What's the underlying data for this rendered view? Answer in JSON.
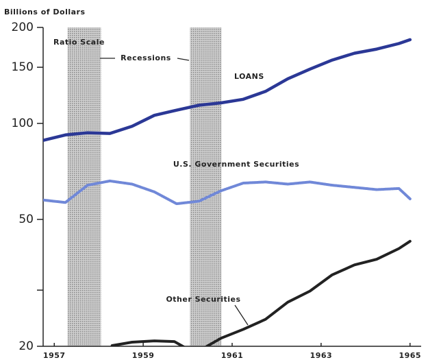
{
  "chart_data": {
    "type": "line",
    "ylabel": "Billions of Dollars",
    "scale_note": "Ratio Scale",
    "log_scale": true,
    "xlim": [
      1956.75,
      1965.25
    ],
    "xticks": [
      1957,
      1959,
      1961,
      1963,
      1965
    ],
    "ylim": [
      20,
      200
    ],
    "yticks": [
      20,
      50,
      100,
      150,
      200
    ],
    "minor_yticks": [
      30
    ],
    "recessions_label": "Recessions",
    "recessions": [
      [
        1957.3,
        1958.05
      ],
      [
        1960.05,
        1960.76
      ]
    ],
    "recession_color": "#b4b4b4",
    "series": [
      {
        "name": "LOANS",
        "color": "#2b3896",
        "x": [
          1956.75,
          1957.25,
          1957.75,
          1958.25,
          1958.75,
          1959.25,
          1959.75,
          1960.25,
          1960.75,
          1961.25,
          1961.75,
          1962.25,
          1962.75,
          1963.25,
          1963.75,
          1964.25,
          1964.75,
          1965.0
        ],
        "values": [
          88.5,
          92,
          93.5,
          93,
          98,
          106,
          110,
          114,
          116,
          119,
          126,
          138,
          148,
          158,
          166,
          171,
          178,
          183
        ]
      },
      {
        "name": "U.S. Government Securities",
        "color": "#7088d8",
        "x": [
          1956.75,
          1957.25,
          1957.75,
          1958.25,
          1958.75,
          1959.25,
          1959.75,
          1960.25,
          1960.75,
          1961.25,
          1961.75,
          1962.25,
          1962.75,
          1963.25,
          1963.75,
          1964.25,
          1964.75,
          1965.0
        ],
        "values": [
          57.5,
          56.5,
          64,
          66,
          64.5,
          61,
          56,
          57,
          61.5,
          65,
          65.5,
          64.5,
          65.5,
          64,
          63,
          62,
          62.5,
          58
        ]
      },
      {
        "name": "Other Securities",
        "color": "#222222",
        "x": [
          1958.3,
          1958.75,
          1959.25,
          1959.7,
          1960.0,
          1960.35,
          1960.75,
          1961.25,
          1961.75,
          1962.25,
          1962.75,
          1963.25,
          1963.75,
          1964.25,
          1964.75,
          1965.0
        ],
        "values": [
          20.1,
          20.6,
          20.8,
          20.7,
          19.6,
          19.7,
          21.2,
          22.6,
          24.3,
          27.5,
          29.8,
          33.5,
          36,
          37.5,
          40.5,
          42.7
        ]
      }
    ]
  }
}
